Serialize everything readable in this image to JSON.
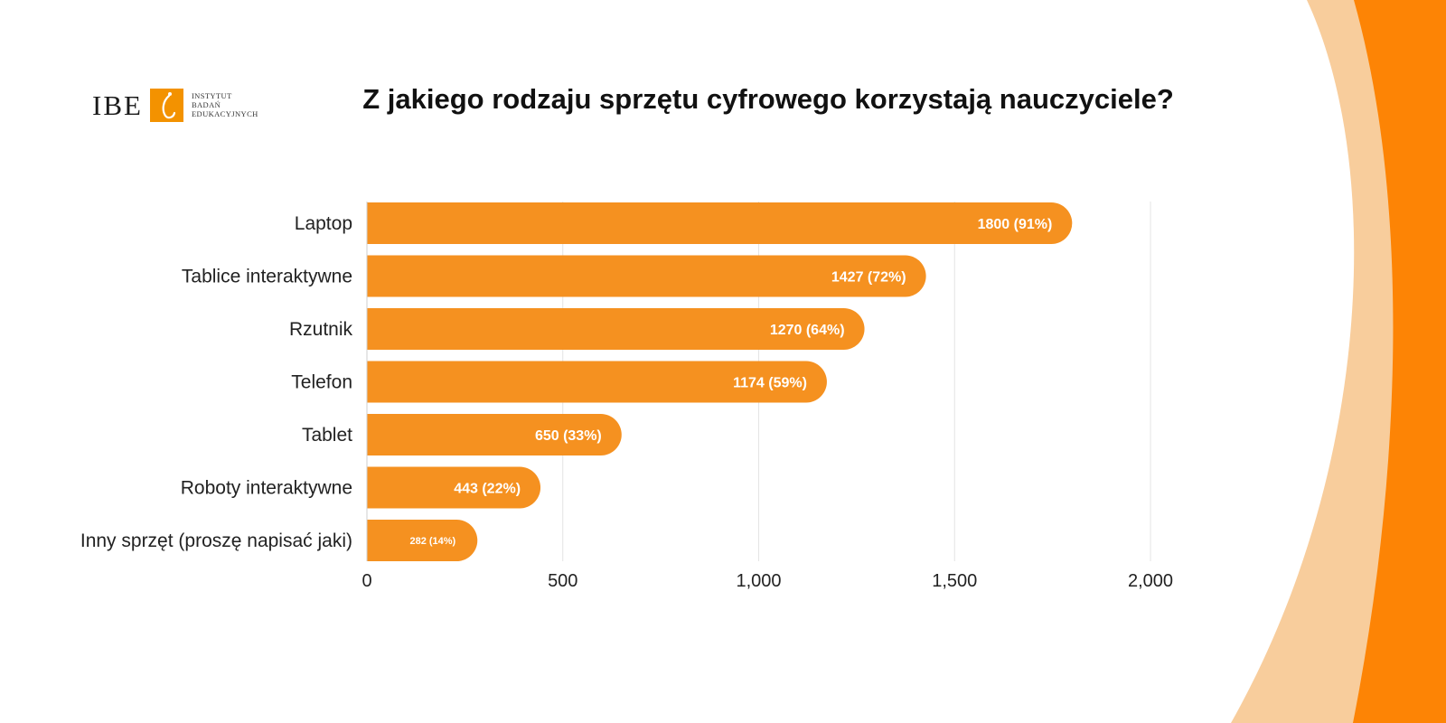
{
  "logo": {
    "letters": "IBE",
    "words": [
      "INSTYTUT",
      "BADAŃ",
      "EDUKACYJNYCH"
    ]
  },
  "colors": {
    "bar": "#f59120",
    "accent_dark": "#fd8405",
    "accent_light": "#f8cd9c",
    "grid": "#e4e4e4"
  },
  "chart_data": {
    "type": "bar",
    "orientation": "horizontal",
    "title": "Z jakiego rodzaju sprzętu cyfrowego korzystają nauczyciele?",
    "xlabel": "",
    "ylabel": "",
    "categories": [
      "Laptop",
      "Tablice interaktywne",
      "Rzutnik",
      "Telefon",
      "Tablet",
      "Roboty interaktywne",
      "Inny sprzęt (proszę napisać jaki)"
    ],
    "values": [
      1800,
      1427,
      1270,
      1174,
      650,
      443,
      282
    ],
    "data_labels": [
      "1800 (91%)",
      "1427 (72%)",
      "1270 (64%)",
      "1174 (59%)",
      "650 (33%)",
      "443 (22%)",
      "282 (14%)"
    ],
    "xlim": [
      0,
      2000
    ],
    "x_ticks": [
      0,
      500,
      1000,
      1500,
      2000
    ],
    "x_tick_labels": [
      "0",
      "500",
      "1,000",
      "1,500",
      "2,000"
    ],
    "grid": true,
    "legend": "none"
  }
}
